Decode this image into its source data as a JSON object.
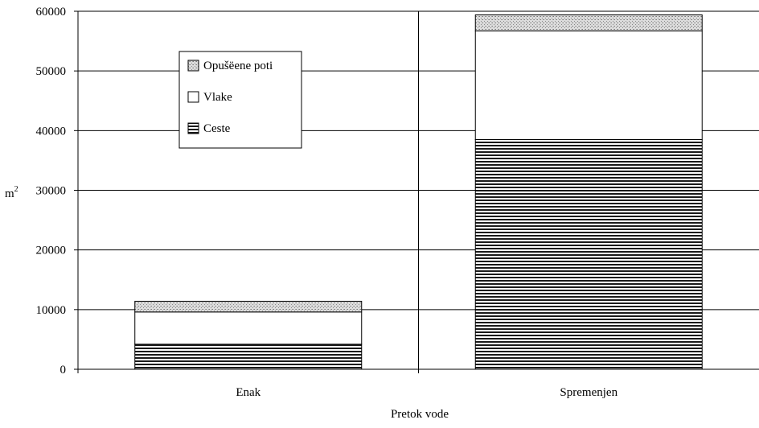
{
  "chart_data": {
    "type": "bar",
    "stacked": true,
    "categories": [
      "Enak",
      "Spremenjen"
    ],
    "series": [
      {
        "name": "Ceste",
        "values": [
          4200,
          38500
        ],
        "pattern": "horizontal-stripes"
      },
      {
        "name": "Vlake",
        "values": [
          5400,
          18200
        ],
        "pattern": "white"
      },
      {
        "name": "Opušëene poti",
        "values": [
          1800,
          2700
        ],
        "pattern": "stipple"
      }
    ],
    "legend_order": [
      "Opušëene poti",
      "Vlake",
      "Ceste"
    ],
    "xlabel": "Pretok vode",
    "ylabel": "m",
    "ylabel_superscript": "2",
    "ylim": [
      0,
      60000
    ],
    "yticks": [
      0,
      10000,
      20000,
      30000,
      40000,
      50000,
      60000
    ],
    "grid": true,
    "legend_position": "upper-left inside plot"
  }
}
